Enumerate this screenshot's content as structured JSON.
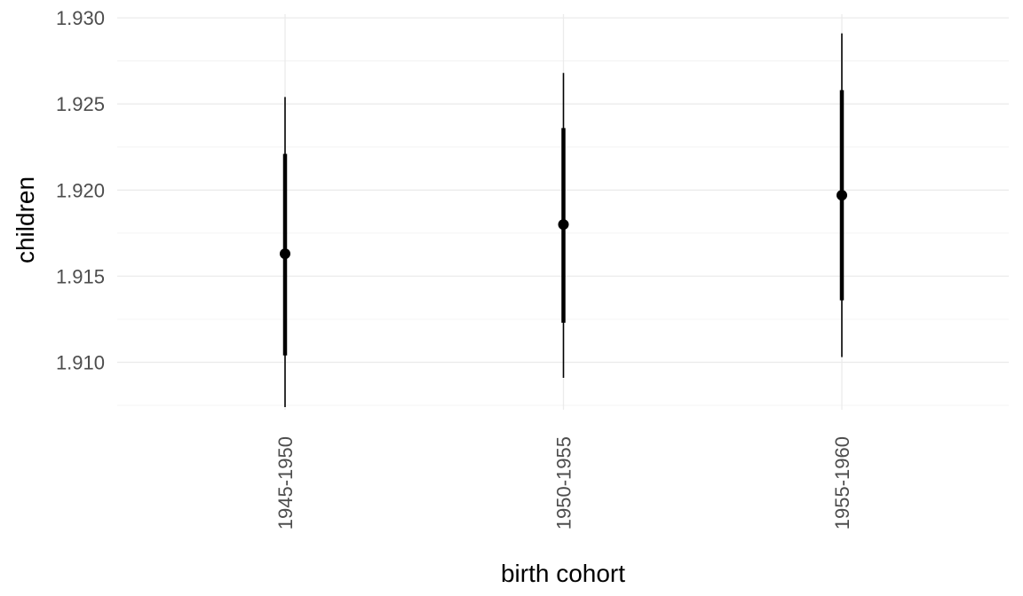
{
  "chart_data": {
    "type": "pointrange",
    "title": "",
    "xlabel": "birth cohort",
    "ylabel": "children",
    "categories": [
      "1945-1950",
      "1950-1955",
      "1955-1960"
    ],
    "points": [
      {
        "category": "1945-1950",
        "estimate": 1.9163,
        "inner_low": 1.9104,
        "inner_high": 1.9221,
        "outer_low": 1.9074,
        "outer_high": 1.9254
      },
      {
        "category": "1950-1955",
        "estimate": 1.918,
        "inner_low": 1.9123,
        "inner_high": 1.9236,
        "outer_low": 1.9091,
        "outer_high": 1.9268
      },
      {
        "category": "1955-1960",
        "estimate": 1.9197,
        "inner_low": 1.9136,
        "inner_high": 1.9258,
        "outer_low": 1.9103,
        "outer_high": 1.9291
      }
    ],
    "yticks": [
      1.91,
      1.915,
      1.92,
      1.925,
      1.93
    ],
    "ytick_labels": [
      "1.910",
      "1.915",
      "1.920",
      "1.925",
      "1.930"
    ],
    "ylim": [
      1.9074,
      1.93
    ],
    "grid": true,
    "legend": "none",
    "colors": {
      "point": "#000000",
      "grid_major": "#ebebeb",
      "grid_minor": "#f4f4f4"
    }
  }
}
